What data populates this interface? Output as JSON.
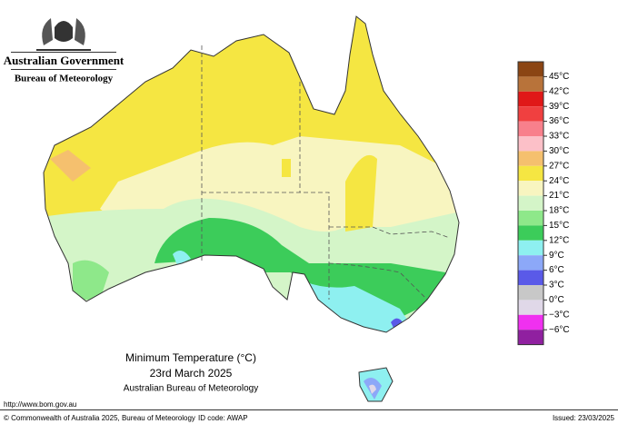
{
  "header": {
    "agency": "Australian Government",
    "bureau": "Bureau of Meteorology"
  },
  "map": {
    "title": "Minimum Temperature (°C)",
    "date": "23rd March 2025",
    "source": "Australian Bureau of Meteorology"
  },
  "legend": {
    "labels": [
      "45°C",
      "42°C",
      "39°C",
      "36°C",
      "33°C",
      "30°C",
      "27°C",
      "24°C",
      "21°C",
      "18°C",
      "15°C",
      "12°C",
      "9°C",
      "6°C",
      "3°C",
      "0°C",
      "−3°C",
      "−6°C"
    ]
  },
  "footer": {
    "url": "http://www.bom.gov.au",
    "copyright": "© Commonwealth of Australia 2025, Bureau of Meteorology",
    "id_code": "ID code: AWAP",
    "issued": "Issued: 23/03/2025"
  }
}
